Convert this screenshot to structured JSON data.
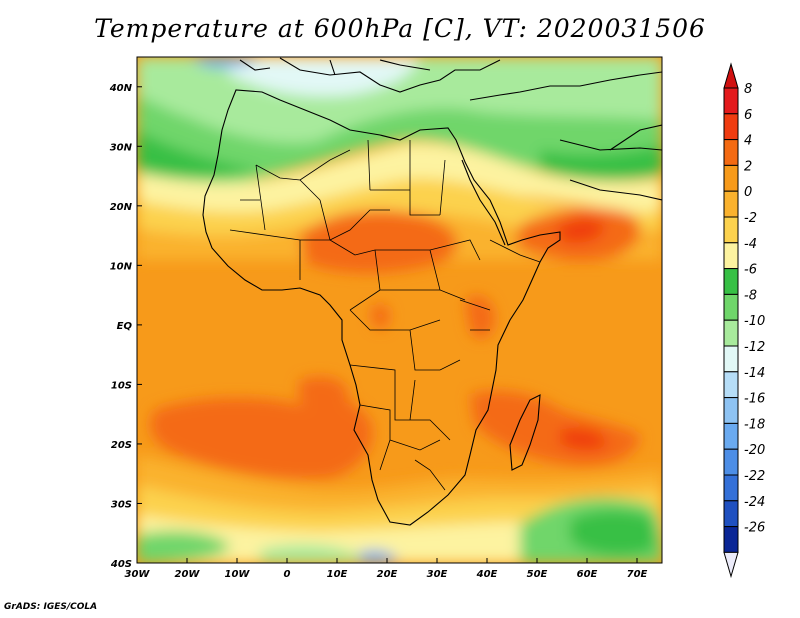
{
  "title": "Temperature at 600hPa [C], VT: 2020031506",
  "credit": "GrADS: IGES/COLA",
  "map": {
    "lon_range": [
      -30,
      75
    ],
    "lat_range": [
      -40,
      45
    ],
    "lon_ticks": [
      {
        "value": -30,
        "label": "30W"
      },
      {
        "value": -20,
        "label": "20W"
      },
      {
        "value": -10,
        "label": "10W"
      },
      {
        "value": 0,
        "label": "0"
      },
      {
        "value": 10,
        "label": "10E"
      },
      {
        "value": 20,
        "label": "20E"
      },
      {
        "value": 30,
        "label": "30E"
      },
      {
        "value": 40,
        "label": "40E"
      },
      {
        "value": 50,
        "label": "50E"
      },
      {
        "value": 60,
        "label": "60E"
      },
      {
        "value": 70,
        "label": "70E"
      }
    ],
    "lat_ticks": [
      {
        "value": 40,
        "label": "40N"
      },
      {
        "value": 30,
        "label": "30N"
      },
      {
        "value": 20,
        "label": "20N"
      },
      {
        "value": 10,
        "label": "10N"
      },
      {
        "value": 0,
        "label": "EQ"
      },
      {
        "value": -10,
        "label": "10S"
      },
      {
        "value": -20,
        "label": "20S"
      },
      {
        "value": -30,
        "label": "30S"
      },
      {
        "value": -40,
        "label": "40S"
      }
    ]
  },
  "colorbar": {
    "levels": [
      {
        "label": "8",
        "color": "#e41a1c"
      },
      {
        "label": "6",
        "color": "#f03c10"
      },
      {
        "label": "4",
        "color": "#f46a12"
      },
      {
        "label": "2",
        "color": "#f79a1a"
      },
      {
        "label": "0",
        "color": "#fab22e"
      },
      {
        "label": "-2",
        "color": "#fcd24e"
      },
      {
        "label": "-4",
        "color": "#fdf3a0"
      },
      {
        "label": "-6",
        "color": "#37c045"
      },
      {
        "label": "-8",
        "color": "#6fd66a"
      },
      {
        "label": "-10",
        "color": "#a8ea9c"
      },
      {
        "label": "-12",
        "color": "#e2f8f6"
      },
      {
        "label": "-14",
        "color": "#b6ddf7"
      },
      {
        "label": "-16",
        "color": "#8ec3f3"
      },
      {
        "label": "-18",
        "color": "#6aaaf0"
      },
      {
        "label": "-20",
        "color": "#4d8ee6"
      },
      {
        "label": "-22",
        "color": "#3470d8"
      },
      {
        "label": "-24",
        "color": "#1f50c0"
      },
      {
        "label": "-26",
        "color": "#0a2696"
      }
    ],
    "top_color": "#d01010",
    "bottom_color": "#ececfa"
  }
}
